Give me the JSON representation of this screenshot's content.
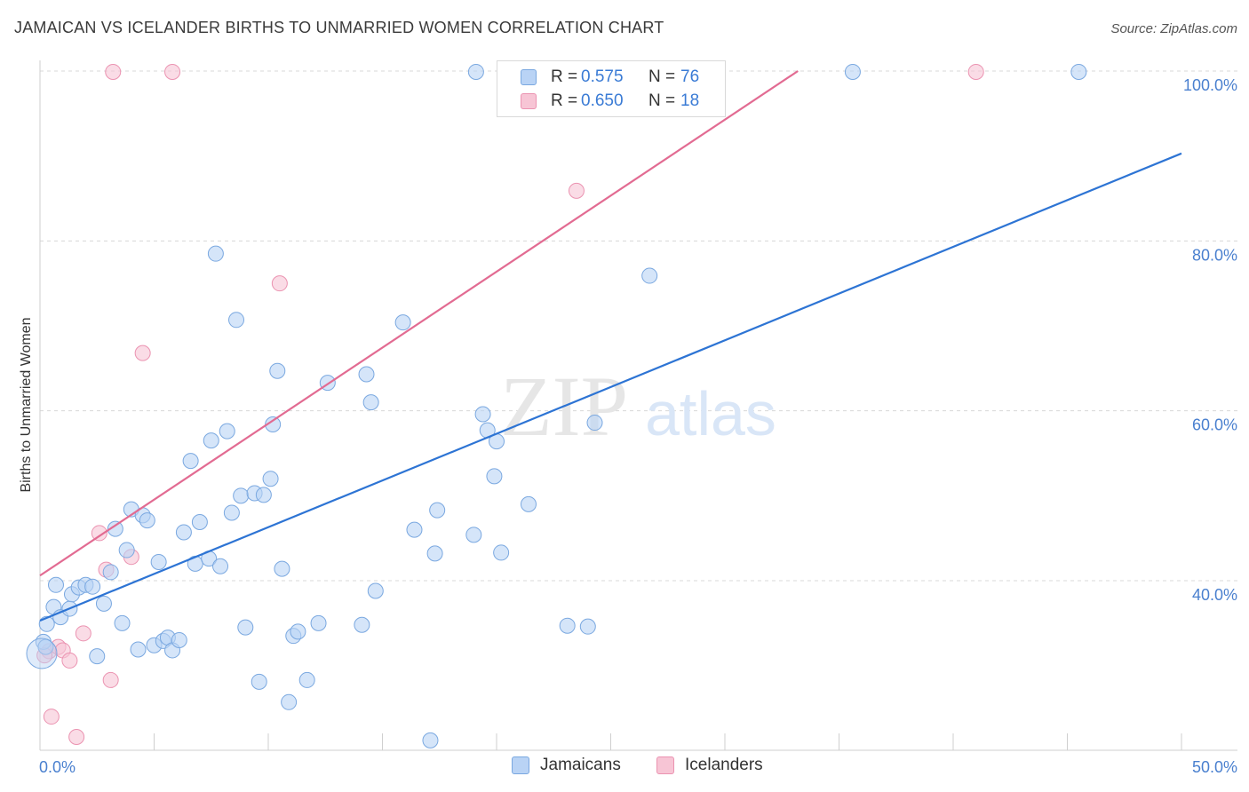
{
  "header": {
    "title": "JAMAICAN VS ICELANDER BIRTHS TO UNMARRIED WOMEN CORRELATION CHART",
    "source": "Source: ZipAtlas.com"
  },
  "watermark": {
    "zip": "ZIP",
    "atlas": "atlas"
  },
  "colors": {
    "blue_fill": "#b9d3f5",
    "blue_stroke": "#7aa8e0",
    "blue_line": "#2d74d4",
    "pink_fill": "#f7c5d5",
    "pink_stroke": "#eb93b1",
    "pink_line": "#e26b92",
    "axis_text": "#4a80cf",
    "grid": "#d8d8d8"
  },
  "legend": {
    "rows": [
      {
        "r_label": "R =",
        "r_value": "0.575",
        "n_label": "N =",
        "n_value": "76",
        "series": "blue"
      },
      {
        "r_label": "R =",
        "r_value": "0.650",
        "n_label": "N =",
        "n_value": "18",
        "series": "pink"
      }
    ]
  },
  "bottom_legend": {
    "items": [
      "Jamaicans",
      "Icelanders"
    ]
  },
  "chart_data": {
    "type": "scatter",
    "title": "JAMAICAN VS ICELANDER BIRTHS TO UNMARRIED WOMEN CORRELATION CHART",
    "xlabel": "",
    "ylabel": "Births to Unmarried Women",
    "xlim": [
      0,
      50
    ],
    "ylim": [
      21,
      102
    ],
    "x_tick_labels": [
      {
        "value": 0,
        "label": "0.0%"
      },
      {
        "value": 50,
        "label": "50.0%"
      }
    ],
    "y_tick_labels": [
      {
        "value": 40,
        "label": "40.0%"
      },
      {
        "value": 60,
        "label": "60.0%"
      },
      {
        "value": 80,
        "label": "80.0%"
      },
      {
        "value": 100,
        "label": "100.0%"
      }
    ],
    "x_minor_ticks": [
      0,
      5,
      10,
      15,
      20,
      25,
      30,
      35,
      40,
      45,
      50
    ],
    "grid": true,
    "legend_position": "top-center",
    "series": [
      {
        "name": "Jamaicans",
        "color": "blue",
        "r": 0.575,
        "n": 76,
        "trend": {
          "x": [
            0,
            50
          ],
          "y": [
            35.3,
            90.3
          ]
        },
        "points": [
          [
            0.3,
            34.9
          ],
          [
            0.6,
            36.9
          ],
          [
            0.9,
            35.7
          ],
          [
            0.7,
            39.5
          ],
          [
            1.3,
            36.7
          ],
          [
            1.4,
            38.4
          ],
          [
            1.7,
            39.2
          ],
          [
            2.0,
            39.5
          ],
          [
            2.3,
            39.3
          ],
          [
            2.8,
            37.3
          ],
          [
            2.5,
            31.1
          ],
          [
            3.1,
            41.0
          ],
          [
            3.3,
            46.1
          ],
          [
            3.6,
            35.0
          ],
          [
            3.8,
            43.6
          ],
          [
            4.0,
            48.4
          ],
          [
            4.3,
            31.9
          ],
          [
            4.5,
            47.7
          ],
          [
            4.7,
            47.1
          ],
          [
            5.0,
            32.4
          ],
          [
            5.2,
            42.2
          ],
          [
            5.4,
            32.9
          ],
          [
            5.6,
            33.3
          ],
          [
            5.8,
            31.8
          ],
          [
            6.1,
            33.0
          ],
          [
            6.3,
            45.7
          ],
          [
            6.6,
            54.1
          ],
          [
            6.8,
            42.0
          ],
          [
            7.0,
            46.9
          ],
          [
            7.4,
            42.6
          ],
          [
            7.5,
            56.5
          ],
          [
            7.7,
            78.5
          ],
          [
            7.9,
            41.7
          ],
          [
            8.2,
            57.6
          ],
          [
            8.4,
            48.0
          ],
          [
            8.6,
            70.7
          ],
          [
            8.8,
            50.0
          ],
          [
            9.0,
            34.5
          ],
          [
            9.4,
            50.3
          ],
          [
            9.6,
            28.1
          ],
          [
            9.8,
            50.1
          ],
          [
            10.1,
            52.0
          ],
          [
            10.2,
            58.4
          ],
          [
            10.4,
            64.7
          ],
          [
            10.6,
            41.4
          ],
          [
            10.9,
            25.7
          ],
          [
            11.1,
            33.5
          ],
          [
            11.3,
            34.0
          ],
          [
            11.7,
            28.3
          ],
          [
            12.2,
            35.0
          ],
          [
            12.6,
            63.3
          ],
          [
            14.1,
            34.8
          ],
          [
            14.3,
            64.3
          ],
          [
            14.5,
            61.0
          ],
          [
            14.7,
            38.8
          ],
          [
            15.9,
            70.4
          ],
          [
            16.4,
            46.0
          ],
          [
            17.1,
            21.2
          ],
          [
            17.3,
            43.2
          ],
          [
            17.4,
            48.3
          ],
          [
            19.0,
            45.4
          ],
          [
            19.1,
            99.9
          ],
          [
            19.4,
            59.6
          ],
          [
            19.6,
            57.7
          ],
          [
            19.9,
            52.3
          ],
          [
            20.0,
            56.4
          ],
          [
            20.2,
            43.3
          ],
          [
            21.4,
            49.0
          ],
          [
            23.1,
            34.7
          ],
          [
            24.0,
            34.6
          ],
          [
            24.3,
            58.6
          ],
          [
            26.7,
            75.9
          ],
          [
            35.6,
            99.9
          ],
          [
            45.5,
            99.9
          ],
          [
            0.15,
            32.8
          ],
          [
            0.25,
            32.2
          ]
        ]
      },
      {
        "name": "Icelanders",
        "color": "pink",
        "r": 0.65,
        "n": 18,
        "trend": {
          "x": [
            0,
            33.2
          ],
          "y": [
            40.6,
            100.0
          ]
        },
        "points": [
          [
            0.4,
            31.7
          ],
          [
            0.5,
            24.0
          ],
          [
            0.8,
            32.2
          ],
          [
            1.0,
            31.8
          ],
          [
            1.3,
            30.6
          ],
          [
            1.6,
            21.6
          ],
          [
            1.9,
            33.8
          ],
          [
            2.6,
            45.6
          ],
          [
            2.9,
            41.3
          ],
          [
            3.1,
            28.3
          ],
          [
            3.2,
            99.9
          ],
          [
            4.0,
            42.8
          ],
          [
            4.5,
            66.8
          ],
          [
            5.8,
            99.9
          ],
          [
            10.5,
            75.0
          ],
          [
            23.5,
            85.9
          ],
          [
            41.0,
            99.9
          ],
          [
            0.2,
            31.2
          ]
        ]
      }
    ]
  }
}
